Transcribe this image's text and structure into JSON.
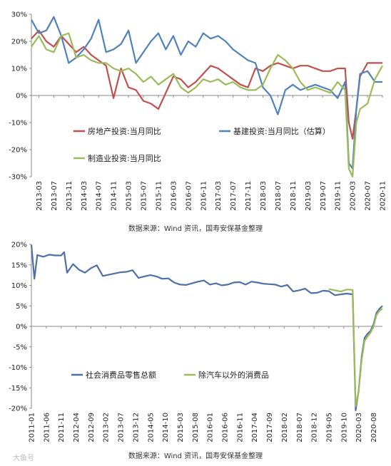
{
  "chart_data": [
    {
      "type": "line",
      "y_unit": "%",
      "ylim": [
        -30,
        30
      ],
      "y_ticks": [
        "30%",
        "20%",
        "10%",
        "0%",
        "-10%",
        "-20%",
        "-30%"
      ],
      "x_ticks": [
        "2013-03",
        "2013-07",
        "2013-11",
        "2014-03",
        "2014-07",
        "2014-11",
        "2015-03",
        "2015-07",
        "2015-11",
        "2016-03",
        "2016-07",
        "2016-11",
        "2017-03",
        "2017-07",
        "2017-11",
        "2018-03",
        "2018-07",
        "2018-11",
        "2019-03",
        "2019-07",
        "2019-11",
        "2020-03",
        "2020-07",
        "2020-11"
      ],
      "x_range": [
        "2013-01",
        "2020-11"
      ],
      "grid": false,
      "legend": "inside-bottom-left",
      "source": "数据来源：Wind 资讯，国寿安保基金整理",
      "series": [
        {
          "name": "房地产投资:当月同比",
          "color": "#c0504d",
          "x": [
            "2013-01",
            "2013-03",
            "2013-05",
            "2013-07",
            "2013-09",
            "2013-11",
            "2014-01",
            "2014-03",
            "2014-05",
            "2014-07",
            "2014-09",
            "2014-11",
            "2015-01",
            "2015-03",
            "2015-05",
            "2015-07",
            "2015-09",
            "2015-11",
            "2016-01",
            "2016-03",
            "2016-05",
            "2016-07",
            "2016-09",
            "2016-11",
            "2017-01",
            "2017-03",
            "2017-05",
            "2017-07",
            "2017-09",
            "2017-11",
            "2018-01",
            "2018-03",
            "2018-05",
            "2018-07",
            "2018-09",
            "2018-11",
            "2019-01",
            "2019-03",
            "2019-05",
            "2019-07",
            "2019-09",
            "2019-11",
            "2020-01",
            "2020-02",
            "2020-03",
            "2020-04",
            "2020-05",
            "2020-07",
            "2020-09",
            "2020-11"
          ],
          "values": [
            21,
            24,
            20,
            18,
            22,
            19,
            16,
            18,
            15,
            13,
            11,
            -1,
            10,
            3,
            2,
            -2,
            -3,
            -5,
            1,
            7,
            6,
            3,
            5,
            8,
            11,
            10,
            8,
            6,
            4,
            3,
            10,
            9,
            11,
            12,
            11,
            10,
            11,
            11,
            10,
            9,
            9,
            10,
            10,
            -10,
            -16,
            -5,
            7,
            12,
            12,
            12
          ]
        },
        {
          "name": "基建投资:当月同比（估算）",
          "color": "#4f81bd",
          "x": [
            "2013-01",
            "2013-03",
            "2013-05",
            "2013-07",
            "2013-09",
            "2013-11",
            "2014-01",
            "2014-03",
            "2014-05",
            "2014-07",
            "2014-09",
            "2014-11",
            "2015-01",
            "2015-03",
            "2015-05",
            "2015-07",
            "2015-09",
            "2015-11",
            "2016-01",
            "2016-03",
            "2016-05",
            "2016-07",
            "2016-09",
            "2016-11",
            "2017-01",
            "2017-03",
            "2017-05",
            "2017-07",
            "2017-09",
            "2017-11",
            "2018-01",
            "2018-03",
            "2018-05",
            "2018-07",
            "2018-09",
            "2018-11",
            "2019-01",
            "2019-03",
            "2019-05",
            "2019-07",
            "2019-09",
            "2019-11",
            "2020-01",
            "2020-02",
            "2020-03",
            "2020-04",
            "2020-05",
            "2020-07",
            "2020-09",
            "2020-11"
          ],
          "values": [
            28,
            23,
            24,
            29,
            22,
            12,
            14,
            17,
            21,
            28,
            16,
            17,
            19,
            24,
            12,
            16,
            20,
            23,
            17,
            22,
            15,
            20,
            18,
            23,
            21,
            22,
            20,
            17,
            15,
            13,
            12,
            3,
            0,
            -7,
            2,
            4,
            2,
            3,
            4,
            3,
            2,
            -1,
            5,
            -25,
            -27,
            -5,
            8,
            9,
            5,
            5
          ]
        },
        {
          "name": "制造业投资:当月同比",
          "color": "#9bbb59",
          "x": [
            "2013-01",
            "2013-03",
            "2013-05",
            "2013-07",
            "2013-09",
            "2013-11",
            "2014-01",
            "2014-03",
            "2014-05",
            "2014-07",
            "2014-09",
            "2014-11",
            "2015-01",
            "2015-03",
            "2015-05",
            "2015-07",
            "2015-09",
            "2015-11",
            "2016-01",
            "2016-03",
            "2016-05",
            "2016-07",
            "2016-09",
            "2016-11",
            "2017-01",
            "2017-03",
            "2017-05",
            "2017-07",
            "2017-09",
            "2017-11",
            "2018-01",
            "2018-03",
            "2018-05",
            "2018-07",
            "2018-09",
            "2018-11",
            "2019-01",
            "2019-03",
            "2019-05",
            "2019-07",
            "2019-09",
            "2019-11",
            "2020-01",
            "2020-02",
            "2020-03",
            "2020-04",
            "2020-05",
            "2020-07",
            "2020-09",
            "2020-11"
          ],
          "values": [
            18,
            22,
            17,
            16,
            22,
            23,
            14,
            15,
            13,
            12,
            12,
            10,
            9,
            10,
            8,
            5,
            7,
            4,
            6,
            8,
            3,
            1,
            3,
            6,
            5,
            6,
            4,
            5,
            3,
            2,
            2,
            4,
            10,
            15,
            13,
            10,
            5,
            2,
            3,
            2,
            1,
            5,
            2,
            -27,
            -30,
            -10,
            -5,
            -3,
            6,
            11
          ]
        }
      ]
    },
    {
      "type": "line",
      "y_unit": "%",
      "ylim": [
        -20,
        20
      ],
      "y_ticks": [
        "20%",
        "15%",
        "10%",
        "5%",
        "0%",
        "-5%",
        "-10%",
        "-15%",
        "-20%"
      ],
      "x_ticks": [
        "2011-01",
        "2011-06",
        "2011-11",
        "2012-04",
        "2012-09",
        "2013-02",
        "2013-07",
        "2013-12",
        "2014-05",
        "2014-10",
        "2015-03",
        "2015-08",
        "2016-01",
        "2016-06",
        "2016-11",
        "2017-04",
        "2017-09",
        "2018-02",
        "2018-07",
        "2018-12",
        "2019-05",
        "2019-10",
        "2020-03",
        "2020-08"
      ],
      "x_range": [
        "2011-01",
        "2020-11"
      ],
      "grid": false,
      "legend": "inside-bottom-left",
      "source": "数据来源：Wind 资讯，国寿安保基金整理",
      "watermark": "大鱼号",
      "series": [
        {
          "name": "社会消费品零售总额",
          "color": "#4f6fa8",
          "x": [
            "2011-01",
            "2011-02",
            "2011-03",
            "2011-05",
            "2011-07",
            "2011-09",
            "2011-11",
            "2011-12",
            "2012-01",
            "2012-03",
            "2012-05",
            "2012-07",
            "2012-09",
            "2012-11",
            "2013-01",
            "2013-03",
            "2013-05",
            "2013-07",
            "2013-09",
            "2013-11",
            "2014-01",
            "2014-03",
            "2014-05",
            "2014-07",
            "2014-09",
            "2014-11",
            "2015-01",
            "2015-03",
            "2015-05",
            "2015-07",
            "2015-09",
            "2015-11",
            "2016-01",
            "2016-03",
            "2016-05",
            "2016-07",
            "2016-09",
            "2016-11",
            "2017-01",
            "2017-03",
            "2017-05",
            "2017-07",
            "2017-09",
            "2017-11",
            "2018-01",
            "2018-03",
            "2018-05",
            "2018-07",
            "2018-09",
            "2018-11",
            "2019-01",
            "2019-03",
            "2019-05",
            "2019-07",
            "2019-09",
            "2019-11",
            "2020-01",
            "2020-02",
            "2020-03",
            "2020-04",
            "2020-05",
            "2020-06",
            "2020-07",
            "2020-08",
            "2020-09",
            "2020-10",
            "2020-11"
          ],
          "values": [
            19.9,
            11.6,
            17.4,
            17.0,
            17.5,
            17.3,
            17.3,
            18.1,
            13.1,
            15.2,
            13.8,
            13.1,
            14.2,
            14.9,
            12.3,
            12.6,
            12.9,
            13.2,
            13.3,
            13.7,
            11.8,
            12.2,
            12.5,
            12.2,
            11.6,
            11.7,
            10.7,
            10.2,
            10.1,
            10.5,
            10.9,
            11.2,
            10.2,
            10.5,
            10.0,
            10.2,
            10.7,
            10.8,
            10.2,
            10.9,
            10.7,
            10.4,
            10.3,
            10.2,
            9.7,
            10.1,
            8.5,
            8.8,
            9.2,
            8.1,
            8.2,
            8.7,
            8.6,
            7.6,
            7.8,
            8.0,
            7.8,
            -20.5,
            -15.8,
            -7.5,
            -2.8,
            -1.8,
            -1.1,
            0.5,
            3.3,
            4.3,
            5.0
          ]
        },
        {
          "name": "除汽车以外的消费品",
          "color": "#9bbb59",
          "x": [
            "2019-05",
            "2019-07",
            "2019-09",
            "2019-11",
            "2020-01",
            "2020-02",
            "2020-03",
            "2020-04",
            "2020-05",
            "2020-06",
            "2020-07",
            "2020-08",
            "2020-09",
            "2020-10",
            "2020-11"
          ],
          "values": [
            9.1,
            8.8,
            8.5,
            9.0,
            8.9,
            -19.5,
            -16.0,
            -8.3,
            -3.5,
            -2.5,
            -1.5,
            0.0,
            2.8,
            3.8,
            4.3
          ]
        }
      ]
    }
  ]
}
